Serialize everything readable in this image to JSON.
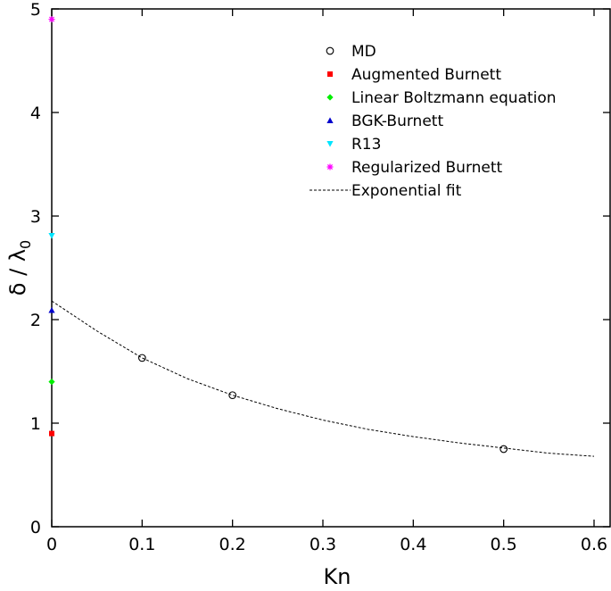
{
  "chart_data": {
    "type": "scatter",
    "xlabel": "Kn",
    "ylabel": "δ / λ",
    "ylabel_subscript": "0",
    "xlim": [
      0,
      0.6
    ],
    "ylim": [
      0,
      5
    ],
    "x_ticks": [
      "0",
      "0.1",
      "0.2",
      "0.3",
      "0.4",
      "0.5",
      "0.6"
    ],
    "y_ticks": [
      "0",
      "1",
      "2",
      "3",
      "4",
      "5"
    ],
    "grid": false,
    "legend_position": "top-right",
    "series": [
      {
        "name": "MD",
        "marker": "open-circle",
        "color": "#000000",
        "points": [
          [
            0.1,
            1.63
          ],
          [
            0.2,
            1.27
          ],
          [
            0.5,
            0.75
          ]
        ]
      },
      {
        "name": "Augmented Burnett",
        "marker": "square",
        "color": "#ff0000",
        "points": [
          [
            0,
            0.9
          ]
        ]
      },
      {
        "name": "Linear Boltzmann equation",
        "marker": "diamond",
        "color": "#00ee00",
        "points": [
          [
            0,
            1.4
          ]
        ]
      },
      {
        "name": "BGK-Burnett",
        "marker": "triangle-up",
        "color": "#0000cc",
        "points": [
          [
            0,
            2.09
          ]
        ]
      },
      {
        "name": "R13",
        "marker": "triangle-down",
        "color": "#00e5ff",
        "points": [
          [
            0,
            2.81
          ]
        ]
      },
      {
        "name": "Regularized Burnett",
        "marker": "asterisk",
        "color": "#ff00ff",
        "points": [
          [
            0,
            4.9
          ]
        ]
      },
      {
        "name": "Exponential fit",
        "marker": "dashed-line",
        "color": "#000000",
        "points": [
          [
            0,
            2.18
          ],
          [
            0.05,
            1.89
          ],
          [
            0.1,
            1.63
          ],
          [
            0.15,
            1.43
          ],
          [
            0.2,
            1.27
          ],
          [
            0.25,
            1.14
          ],
          [
            0.3,
            1.03
          ],
          [
            0.35,
            0.94
          ],
          [
            0.4,
            0.87
          ],
          [
            0.45,
            0.81
          ],
          [
            0.5,
            0.76
          ],
          [
            0.55,
            0.71
          ],
          [
            0.6,
            0.68
          ]
        ]
      }
    ]
  }
}
